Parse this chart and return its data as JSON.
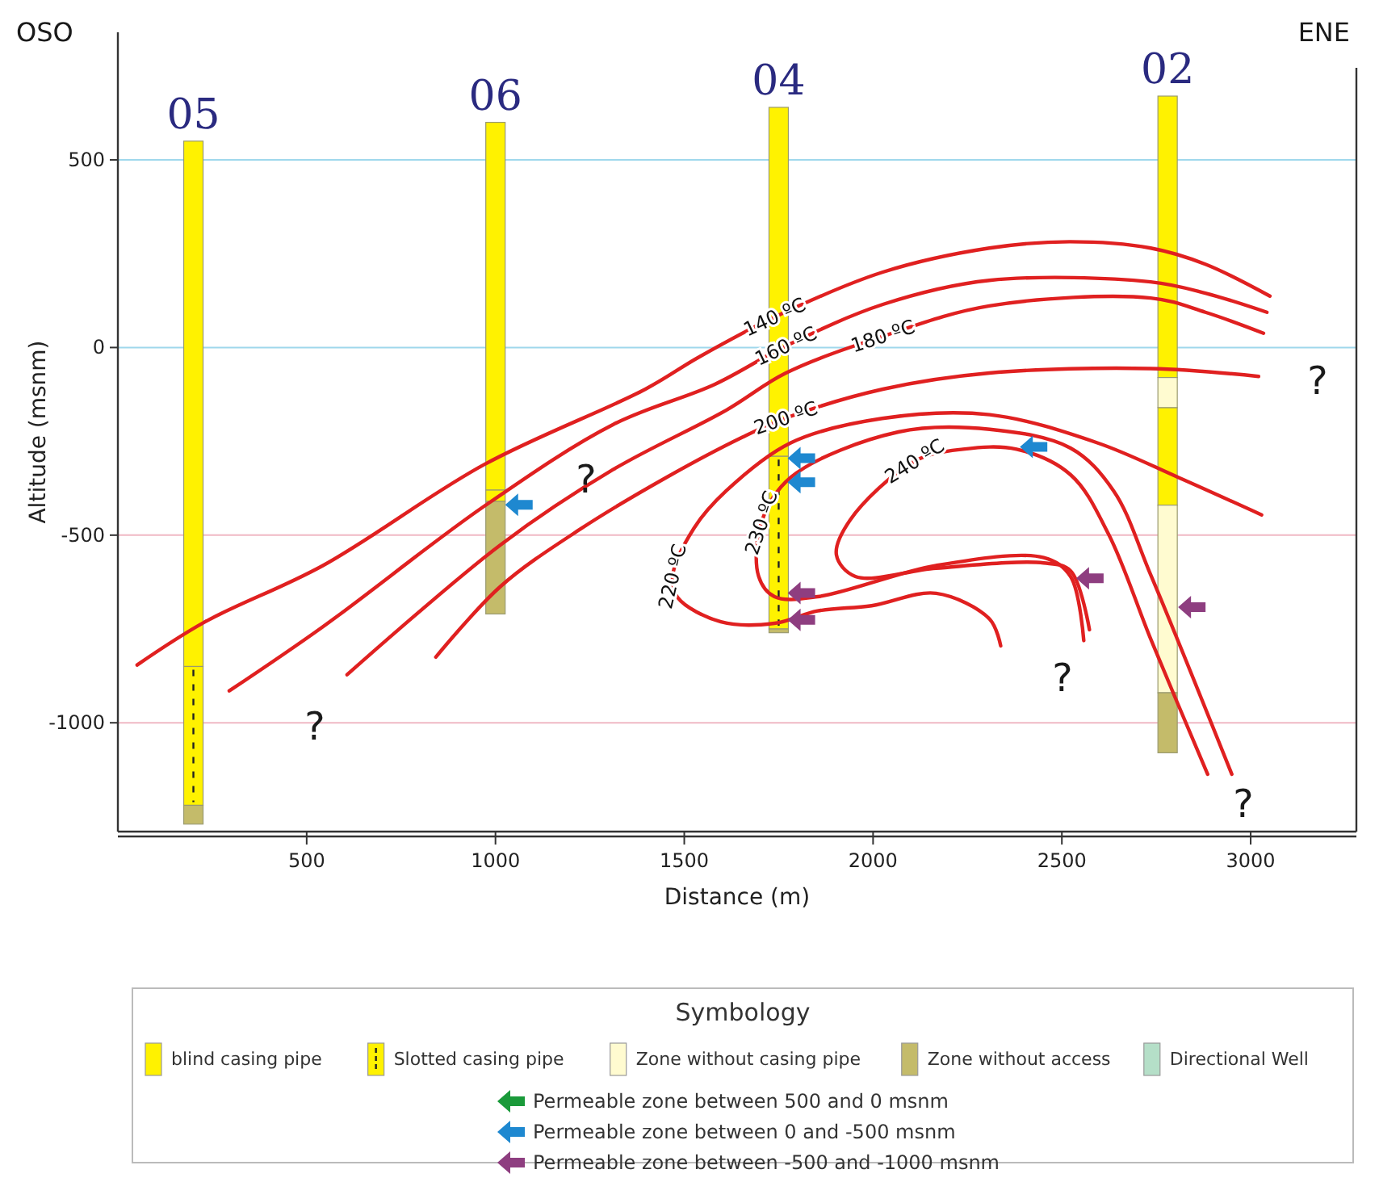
{
  "chart_data": {
    "type": "line",
    "xlabel": "Distance (m)",
    "ylabel": "Altitude (msnm)",
    "legend_title": "Symbology",
    "legend": "bottom",
    "grid": "y",
    "xlim": [
      0,
      3280
    ],
    "ylim": [
      -1290,
      840
    ],
    "xticks": [
      500,
      1000,
      1500,
      2000,
      2500,
      3000
    ],
    "yticks": [
      500,
      0,
      -500,
      -1000
    ],
    "series": [
      {
        "name": "blind casing pipe",
        "type": "bar",
        "color": "#fff200",
        "x": [
          200,
          1000,
          1750,
          2780
        ],
        "base": [
          -850,
          -380,
          -290,
          -80
        ],
        "values": [
          1400,
          980,
          930,
          750
        ]
      },
      {
        "type": "bar",
        "color": "#fff200",
        "x": [
          2780
        ],
        "base": [
          -420
        ],
        "values": [
          260
        ]
      },
      {
        "name": "Slotted casing pipe",
        "type": "bar",
        "color": "#fff200",
        "line_style": "dashed",
        "x": [
          200,
          1000,
          1750
        ],
        "base": [
          -1220,
          -410,
          -750
        ],
        "values": [
          370,
          30,
          460
        ]
      },
      {
        "name": "Zone without casing pipe",
        "type": "bar",
        "color": "#fffbd0",
        "x": [
          2780
        ],
        "base": [
          -160
        ],
        "values": [
          80
        ]
      },
      {
        "type": "bar",
        "color": "#fffbd0",
        "x": [
          2780
        ],
        "base": [
          -920
        ],
        "values": [
          500
        ]
      },
      {
        "name": "Zone without access",
        "type": "bar",
        "color": "#c4bb6a",
        "x": [
          200,
          1000,
          1750,
          2780
        ],
        "base": [
          -1270,
          -710,
          -760,
          -1080
        ],
        "values": [
          50,
          300,
          10,
          160
        ]
      },
      {
        "name": "Directional Well",
        "type": "bar",
        "color": "#b5dfc8"
      },
      {
        "name": "Permeable zone between 500 and 0 msnm",
        "type": "scatter",
        "color": "#1a9a3a"
      },
      {
        "name": "Permeable zone between 0 and -500 msnm",
        "type": "scatter",
        "marker": "triangle",
        "color": "#1e88d0",
        "x": [
          1060,
          1808,
          1808,
          2423
        ],
        "values": [
          -419,
          -295,
          -359,
          -265
        ]
      },
      {
        "name": "Permeable zone between -500 and -1000 msnm",
        "type": "scatter",
        "marker": "triangle",
        "color": "#8e3e80",
        "x": [
          1808,
          1808,
          2572,
          2842
        ],
        "values": [
          -654,
          -726,
          -615,
          -692
        ]
      },
      {
        "name": "140 ºC",
        "color": "#e02020",
        "x": [
          51,
          231,
          543,
          970,
          1397,
          1538,
          1739,
          2026,
          2308,
          2521,
          2735,
          2880,
          3051
        ],
        "values": [
          -846,
          -731,
          -581,
          -312,
          -111,
          -26,
          81,
          201,
          265,
          282,
          265,
          222,
          137
        ]
      },
      {
        "name": "160 ºC",
        "color": "#e02020",
        "x": [
          295,
          543,
          970,
          1312,
          1581,
          1769,
          2026,
          2308,
          2735,
          2880,
          3043
        ],
        "values": [
          -915,
          -744,
          -423,
          -205,
          -98,
          4,
          115,
          179,
          175,
          145,
          94
        ]
      },
      {
        "name": "180 ºC",
        "color": "#e02020",
        "x": [
          607,
          1013,
          1312,
          1611,
          1769,
          2026,
          2308,
          2735,
          2880,
          3034
        ],
        "values": [
          -872,
          -526,
          -325,
          -167,
          -68,
          30,
          111,
          132,
          94,
          38
        ]
      },
      {
        "name": "200 ºC",
        "color": "#e02020",
        "x": [
          842,
          1013,
          1226,
          1453,
          1654,
          1769,
          2026,
          2308,
          2735,
          3021
        ],
        "values": [
          -825,
          -637,
          -483,
          -346,
          -239,
          -188,
          -111,
          -68,
          -56,
          -77
        ]
      },
      {
        "name": "220 ºC",
        "color": "#e02020",
        "x": [
          2338,
          2309,
          2167,
          1996,
          1853,
          1739,
          1597,
          1483,
          1469,
          1526,
          1611,
          1782,
          2024,
          2309,
          2594,
          2808,
          3029
        ],
        "values": [
          -795,
          -724,
          -655,
          -688,
          -702,
          -735,
          -731,
          -667,
          -610,
          -481,
          -382,
          -254,
          -189,
          -179,
          -254,
          -346,
          -446
        ]
      },
      {
        "name": "230 ºC",
        "color": "#e02020",
        "x": [
          2558,
          2523,
          2452,
          2167,
          1853,
          1739,
          1697,
          1704,
          1782,
          2067,
          2309,
          2523,
          2637,
          2737,
          2950
        ],
        "values": [
          -781,
          -610,
          -560,
          -581,
          -664,
          -664,
          -610,
          -467,
          -346,
          -225,
          -218,
          -268,
          -382,
          -610,
          -1137
        ]
      },
      {
        "name": "240 ºC",
        "color": "#e02020",
        "x": [
          2573,
          2523,
          2452,
          2167,
          1953,
          1903,
          1939,
          2110,
          2238,
          2380,
          2523,
          2623,
          2737,
          2886
        ],
        "values": [
          -752,
          -595,
          -574,
          -588,
          -610,
          -553,
          -460,
          -303,
          -271,
          -271,
          -339,
          -496,
          -781,
          -1137
        ]
      }
    ],
    "annotations": [
      "OSO",
      "ENE",
      "?",
      "?",
      "?",
      "?",
      "?",
      {
        "text": "05",
        "x": 200,
        "y": 550
      },
      {
        "text": "06",
        "x": 1000,
        "y": 600
      },
      {
        "text": "04",
        "x": 1750,
        "y": 640
      },
      {
        "text": "02",
        "x": 2780,
        "y": 670
      }
    ]
  }
}
